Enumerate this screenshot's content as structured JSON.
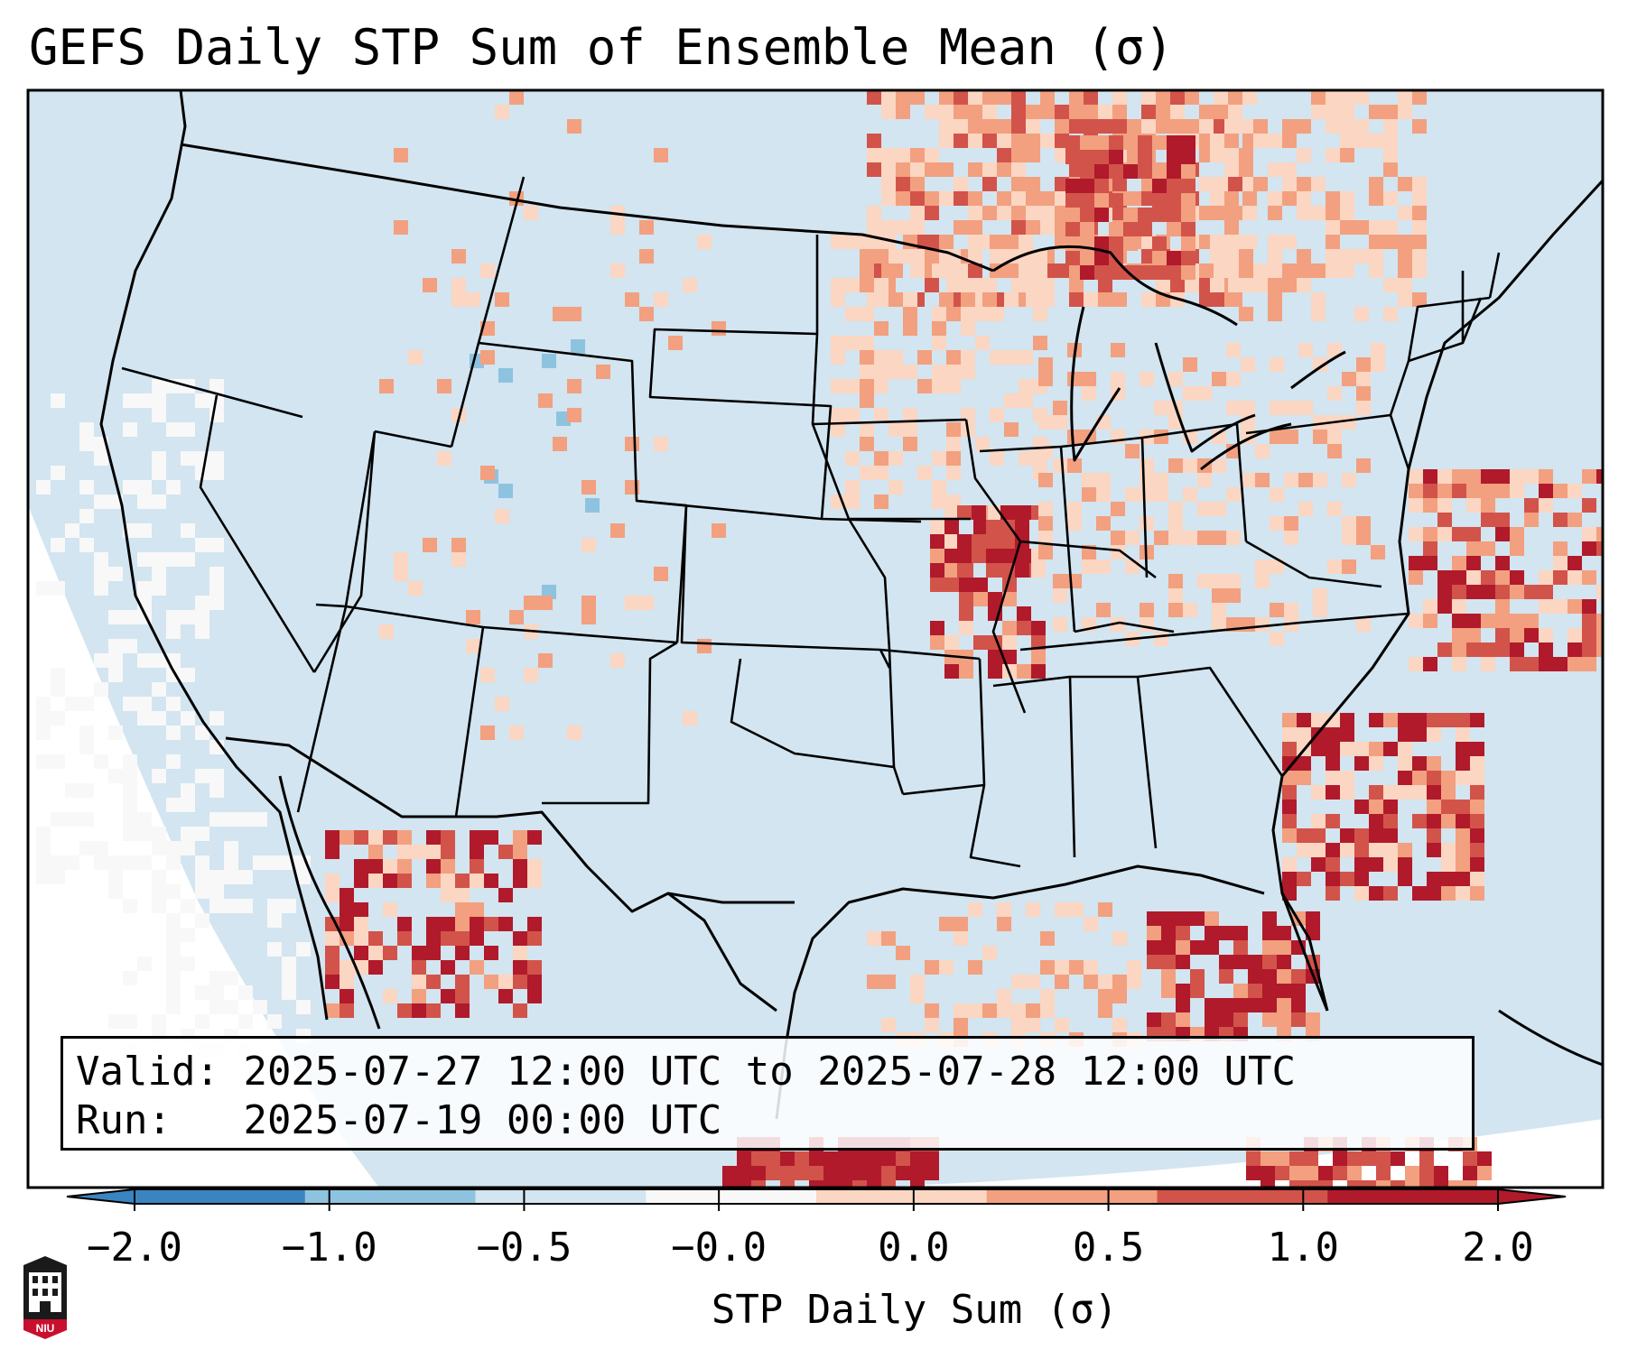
{
  "title": "GEFS Daily STP Sum of Ensemble Mean (σ)",
  "info": {
    "valid_label": "Valid:",
    "valid_value": "2025-07-27 12:00 UTC to 2025-07-28 12:00 UTC",
    "run_label": "Run:",
    "run_value": "2025-07-19 00:00 UTC"
  },
  "colorbar": {
    "label": "STP Daily Sum (σ)",
    "ticks": [
      "−2.0",
      "−1.0",
      "−0.5",
      "−0.0",
      "0.0",
      "0.5",
      "1.0",
      "2.0"
    ],
    "colors": [
      "#3a85c0",
      "#8ec3df",
      "#d2e5f0",
      "#f8f8f8",
      "#fbd6c2",
      "#f2a07f",
      "#d2534a",
      "#b01a2b"
    ],
    "extend": "both"
  },
  "map": {
    "projection": "Lambert Conformal (CONUS)",
    "ocean_color": "#d2e5f0",
    "outside_color": "#ffffff"
  },
  "logo": {
    "text": "NIU",
    "color": "#c8102e"
  }
}
